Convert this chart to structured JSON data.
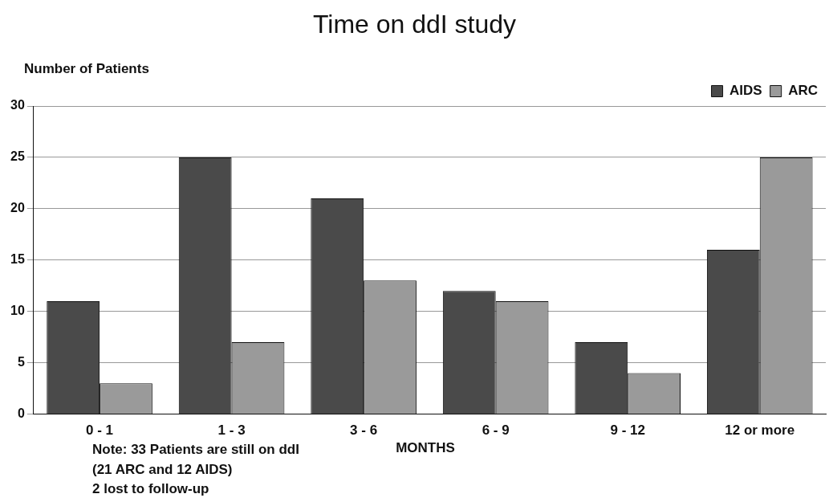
{
  "chart_data": {
    "type": "bar",
    "title": "Time on ddI study",
    "xlabel": "MONTHS",
    "ylabel": "Number of Patients",
    "categories": [
      "0 - 1",
      "1 - 3",
      "3 - 6",
      "6 - 9",
      "9 - 12",
      "12 or more"
    ],
    "series": [
      {
        "name": "AIDS",
        "color": "#4a4a4a",
        "values": [
          11,
          25,
          21,
          12,
          7,
          16
        ]
      },
      {
        "name": "ARC",
        "color": "#9a9a9a",
        "values": [
          3,
          7,
          13,
          11,
          4,
          25
        ]
      }
    ],
    "ylim": [
      0,
      30
    ],
    "yticks": [
      0,
      5,
      10,
      15,
      20,
      25,
      30
    ],
    "grid": "y",
    "legend": "top right",
    "annotations": [
      "Note: 33 Patients are still on ddI\n(21 ARC and 12 AIDS)\n2 lost to follow-up"
    ]
  }
}
